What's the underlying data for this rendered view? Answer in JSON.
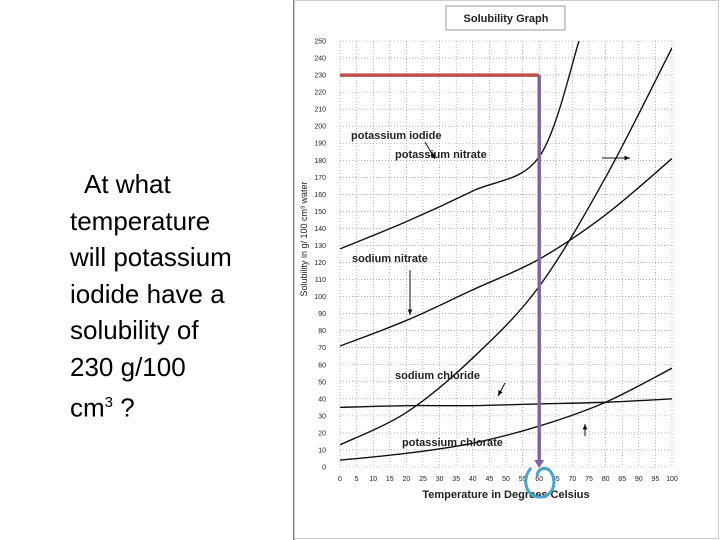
{
  "question": {
    "line1": "At what",
    "line2": "temperature",
    "line3": "will potassium",
    "line4": "iodide have a",
    "line5": "solubility of",
    "line6": "230 g/100",
    "line7_pre": "cm",
    "line7_sup": "3",
    "line7_post": " ?"
  },
  "chart_data": {
    "type": "line",
    "title": "Solubility Graph",
    "xlabel": "Temperature in Degrees Celsius",
    "ylabel": "Solubility in g/ 100 cm³ water",
    "xlim": [
      0,
      100
    ],
    "ylim": [
      0,
      250
    ],
    "x_ticks": [
      0,
      5,
      10,
      15,
      20,
      25,
      30,
      35,
      40,
      45,
      50,
      55,
      60,
      65,
      70,
      75,
      80,
      85,
      90,
      95,
      100
    ],
    "y_ticks": [
      0,
      10,
      20,
      30,
      40,
      50,
      60,
      70,
      80,
      90,
      100,
      110,
      120,
      130,
      140,
      150,
      160,
      170,
      180,
      190,
      200,
      210,
      220,
      230,
      240,
      250
    ],
    "grid": true,
    "series": [
      {
        "name": "potassium iodide",
        "x": [
          0,
          20,
          40,
          60,
          72
        ],
        "y": [
          128,
          144,
          162,
          182,
          250
        ]
      },
      {
        "name": "potassium nitrate",
        "x": [
          0,
          20,
          40,
          60,
          80,
          100
        ],
        "y": [
          13,
          32,
          64,
          106,
          170,
          246
        ]
      },
      {
        "name": "sodium nitrate",
        "x": [
          0,
          20,
          40,
          60,
          80,
          100
        ],
        "y": [
          71,
          86,
          104,
          122,
          148,
          181
        ]
      },
      {
        "name": "sodium chloride",
        "x": [
          0,
          20,
          40,
          60,
          80,
          100
        ],
        "y": [
          35,
          36,
          36,
          37,
          38,
          40
        ]
      },
      {
        "name": "potassium chlorate",
        "x": [
          0,
          20,
          40,
          60,
          80,
          100
        ],
        "y": [
          4,
          8,
          14,
          24,
          38,
          58
        ]
      }
    ],
    "annotations": [
      {
        "type": "hline",
        "y": 230,
        "x_from": 0,
        "x_to": 60,
        "color": "#c0504d"
      },
      {
        "type": "vline",
        "x": 60,
        "y_from": 230,
        "y_to": 0,
        "color": "#8064a2"
      },
      {
        "type": "circle",
        "x": 60,
        "y": -7,
        "color": "#4aa3c8"
      }
    ]
  }
}
